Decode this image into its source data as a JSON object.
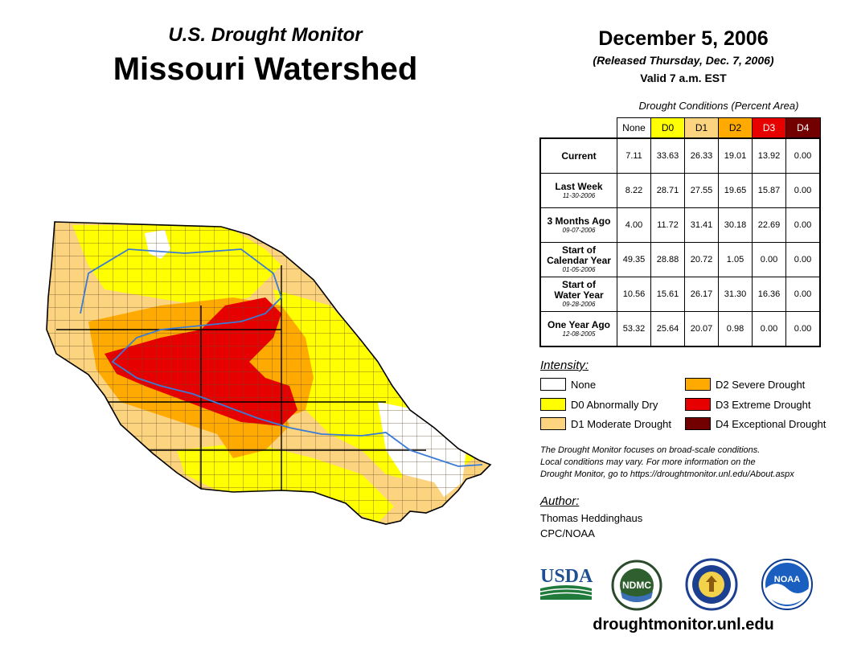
{
  "header": {
    "subtitle": "U.S. Drought Monitor",
    "title": "Missouri Watershed",
    "date": "December 5, 2006",
    "released": "(Released Thursday, Dec. 7, 2006)",
    "valid": "Valid 7 a.m. EST"
  },
  "table": {
    "caption": "Drought Conditions (Percent Area)",
    "columns": [
      {
        "label": "None",
        "bg": "#ffffff",
        "fg": "#000000"
      },
      {
        "label": "D0",
        "bg": "#ffff00",
        "fg": "#000000"
      },
      {
        "label": "D1",
        "bg": "#fcd37f",
        "fg": "#000000"
      },
      {
        "label": "D2",
        "bg": "#ffaa00",
        "fg": "#000000"
      },
      {
        "label": "D3",
        "bg": "#e60000",
        "fg": "#ffffff"
      },
      {
        "label": "D4",
        "bg": "#730000",
        "fg": "#ffffff"
      }
    ],
    "rows": [
      {
        "label_lines": [
          "Current"
        ],
        "date": "",
        "values": [
          "7.11",
          "33.63",
          "26.33",
          "19.01",
          "13.92",
          "0.00"
        ]
      },
      {
        "label_lines": [
          "Last Week"
        ],
        "date": "11-30-2006",
        "values": [
          "8.22",
          "28.71",
          "27.55",
          "19.65",
          "15.87",
          "0.00"
        ]
      },
      {
        "label_lines": [
          "3 Months Ago"
        ],
        "date": "09-07-2006",
        "values": [
          "4.00",
          "11.72",
          "31.41",
          "30.18",
          "22.69",
          "0.00"
        ]
      },
      {
        "label_lines": [
          "Start of",
          "Calendar Year"
        ],
        "date": "01-05-2006",
        "values": [
          "49.35",
          "28.88",
          "20.72",
          "1.05",
          "0.00",
          "0.00"
        ]
      },
      {
        "label_lines": [
          "Start of",
          "Water Year"
        ],
        "date": "09-28-2006",
        "values": [
          "10.56",
          "15.61",
          "26.17",
          "31.30",
          "16.36",
          "0.00"
        ]
      },
      {
        "label_lines": [
          "One Year Ago"
        ],
        "date": "12-08-2005",
        "values": [
          "53.32",
          "25.64",
          "20.07",
          "0.98",
          "0.00",
          "0.00"
        ]
      }
    ]
  },
  "legend": {
    "title": "Intensity:",
    "items": [
      {
        "label": "None",
        "color": "#ffffff"
      },
      {
        "label": "D0 Abnormally Dry",
        "color": "#ffff00"
      },
      {
        "label": "D1 Moderate Drought",
        "color": "#fcd37f"
      },
      {
        "label": "D2 Severe Drought",
        "color": "#ffaa00"
      },
      {
        "label": "D3 Extreme Drought",
        "color": "#e60000"
      },
      {
        "label": "D4 Exceptional Drought",
        "color": "#730000"
      }
    ]
  },
  "note": {
    "line1": "The Drought Monitor focuses on broad-scale conditions.",
    "line2": "Local conditions may vary. For more information on the",
    "line3": "Drought Monitor, go to https://droughtmonitor.unl.edu/About.aspx"
  },
  "author": {
    "title": "Author:",
    "name": "Thomas Heddinghaus",
    "org": "CPC/NOAA"
  },
  "logos": {
    "usda": "USDA",
    "ndmc": "NDMC",
    "noaa": "NOAA"
  },
  "website": "droughtmonitor.unl.edu",
  "colors": {
    "border": "#000000",
    "county_line": "#6b4b2a",
    "river": "#3a7bd5"
  }
}
